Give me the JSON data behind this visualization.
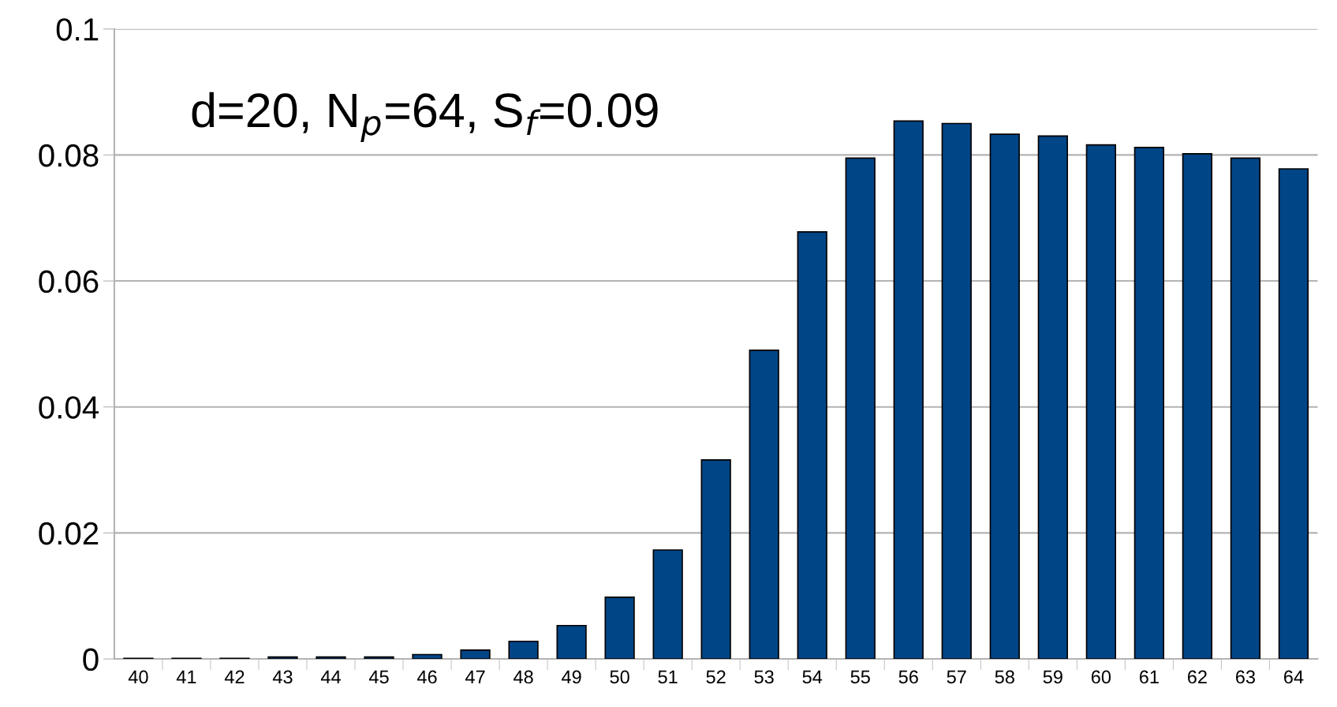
{
  "chart_data": {
    "type": "bar",
    "annotations": [
      "d=20, N$_{p}$=64, S$_{f}$=0.09"
    ],
    "categories": [
      "40",
      "41",
      "42",
      "43",
      "44",
      "45",
      "46",
      "47",
      "48",
      "49",
      "50",
      "51",
      "52",
      "53",
      "54",
      "55",
      "56",
      "57",
      "58",
      "59",
      "60",
      "61",
      "62",
      "63",
      "64"
    ],
    "values": [
      0.0001,
      0.0001,
      0.0001,
      0.0003,
      0.0003,
      0.0003,
      0.0007,
      0.0014,
      0.0028,
      0.0053,
      0.0098,
      0.0173,
      0.0316,
      0.049,
      0.0678,
      0.0795,
      0.0854,
      0.085,
      0.0833,
      0.083,
      0.0816,
      0.0812,
      0.0802,
      0.0795,
      0.0778
    ],
    "color": "#004586",
    "ylim": [
      0,
      0.1
    ],
    "yticks": [
      0,
      0.02,
      0.04,
      0.06,
      0.08,
      0.1
    ],
    "grid": "y"
  }
}
